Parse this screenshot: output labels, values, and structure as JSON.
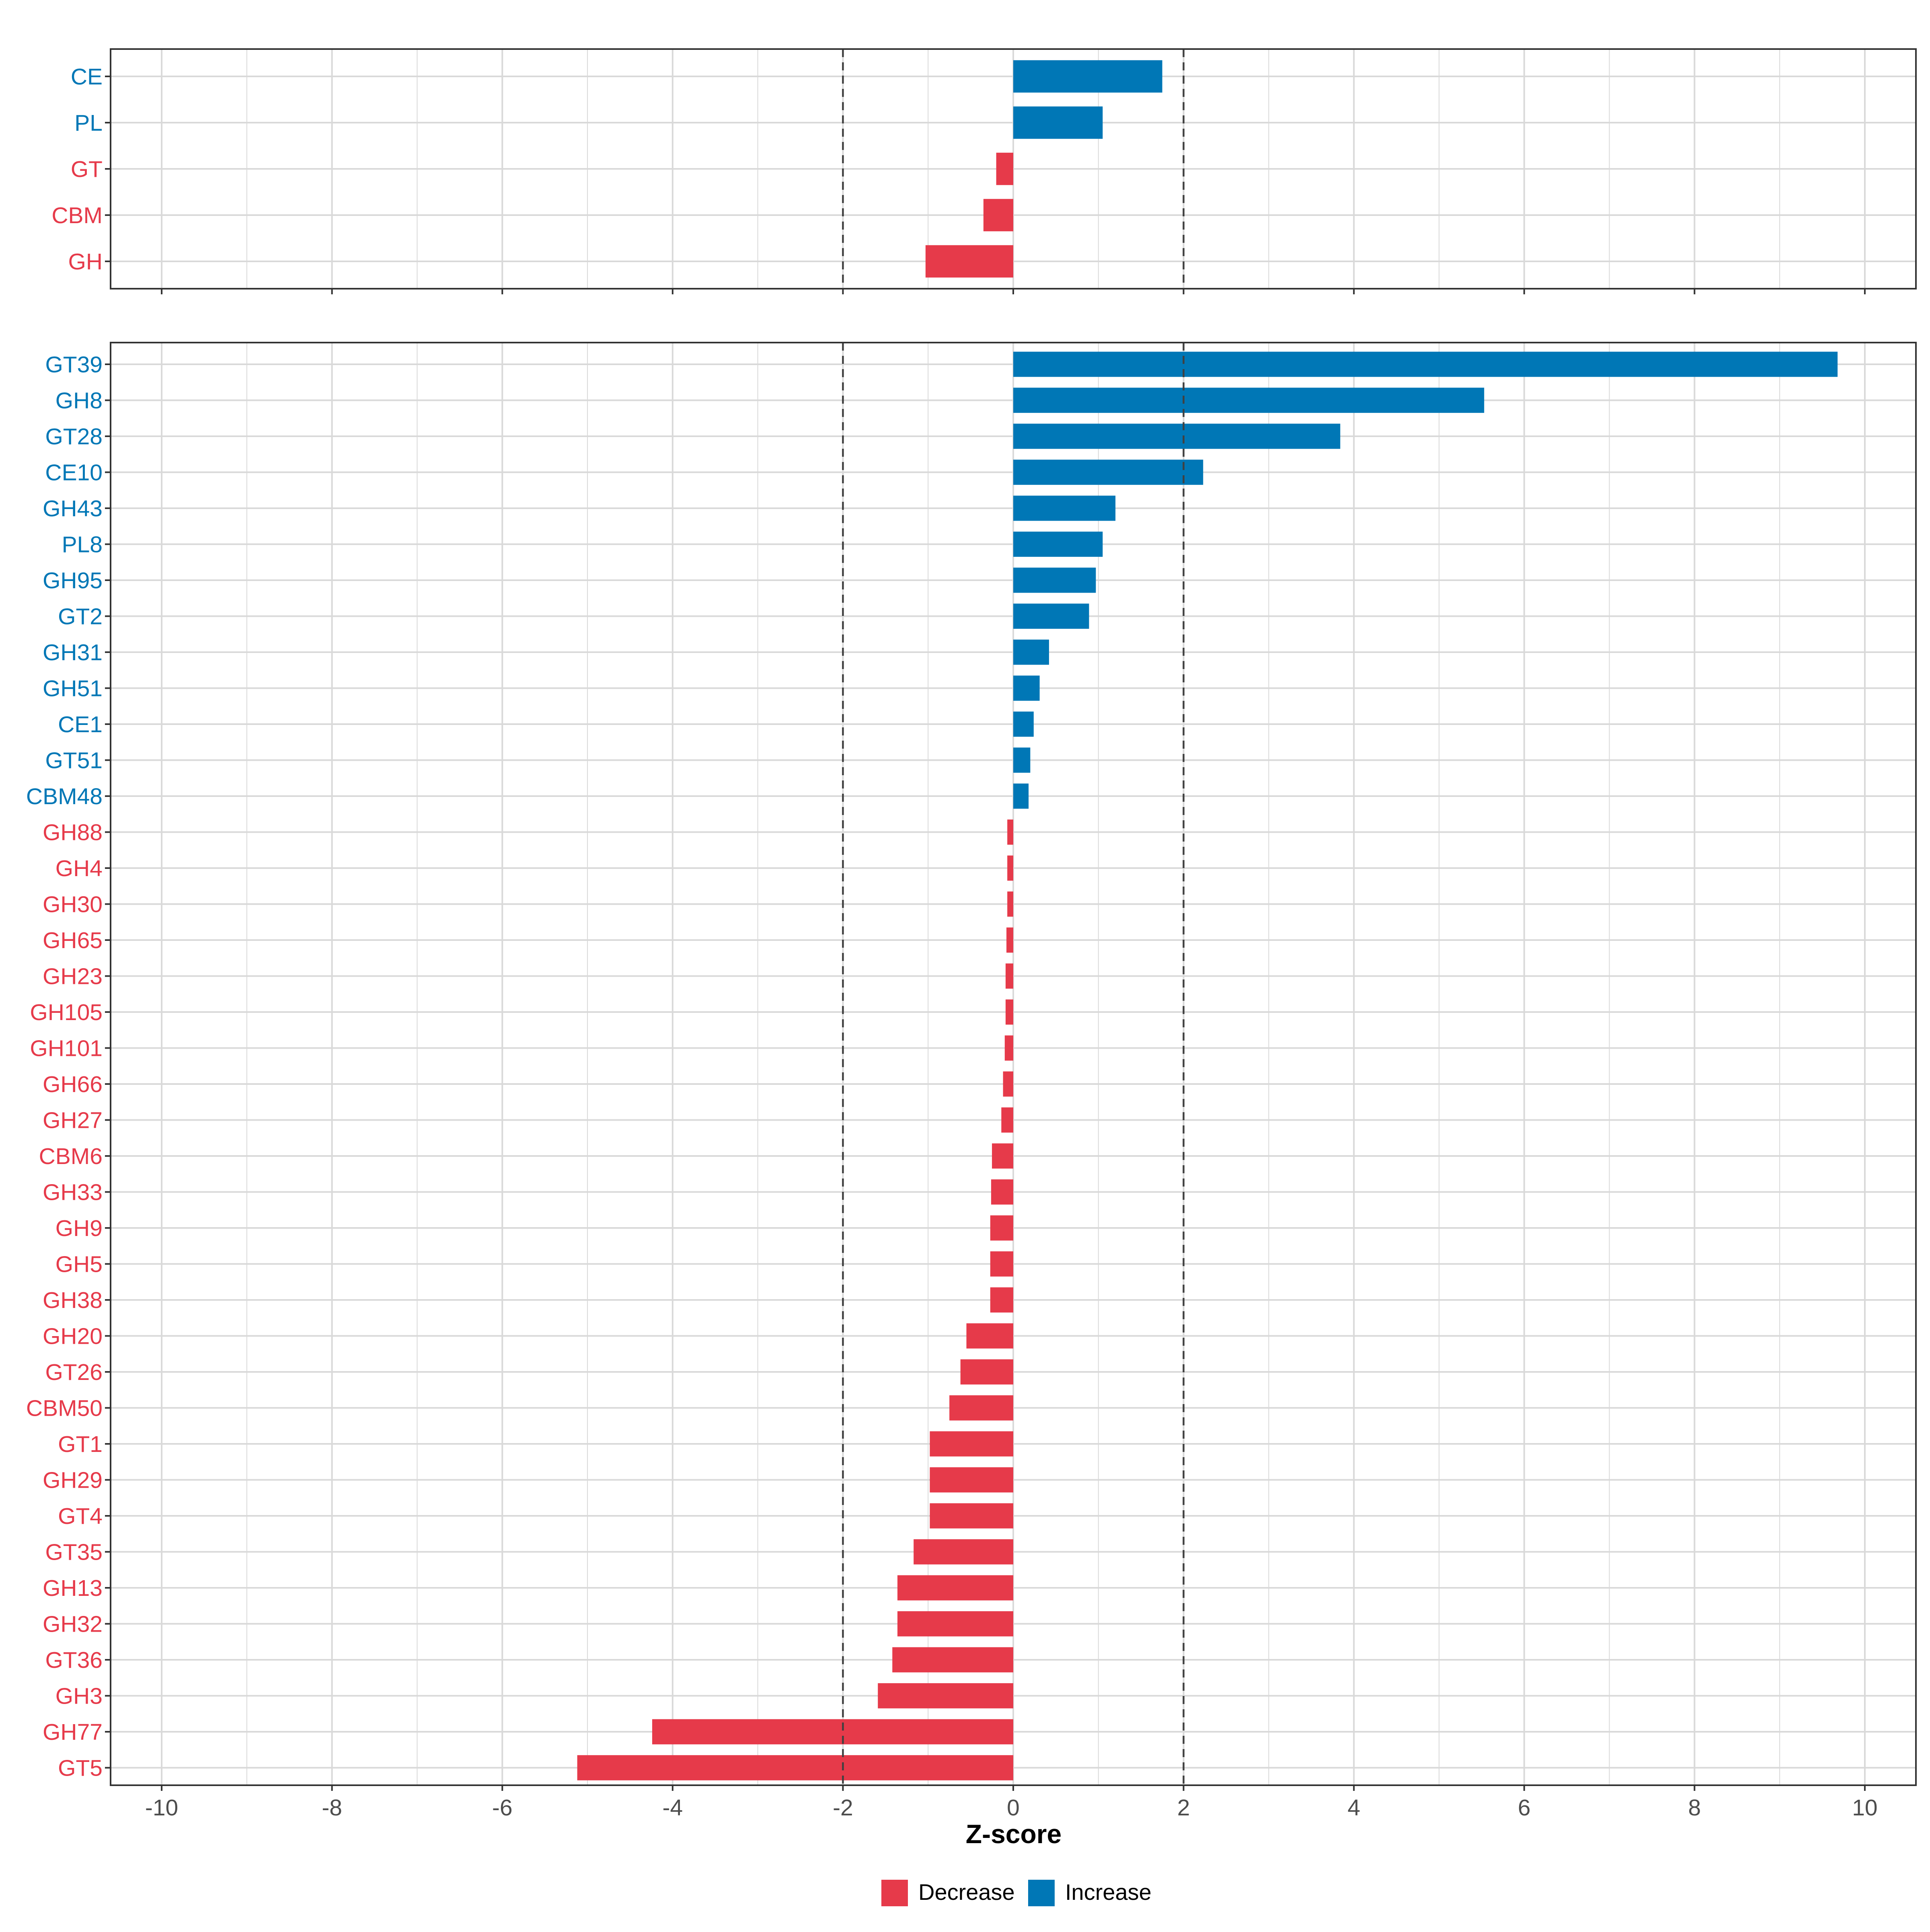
{
  "chart_data": [
    {
      "type": "bar",
      "orientation": "horizontal",
      "panel": "class-level",
      "categories": [
        "CE",
        "PL",
        "GT",
        "CBM",
        "GH"
      ],
      "values": [
        1.75,
        1.05,
        -0.2,
        -0.35,
        -1.03
      ],
      "threshold_lines": [
        -2,
        2
      ],
      "xlim": [
        -10.6,
        10.6
      ],
      "grid": true
    },
    {
      "type": "bar",
      "orientation": "horizontal",
      "panel": "family-level",
      "categories": [
        "GT39",
        "GH8",
        "GT28",
        "CE10",
        "GH43",
        "PL8",
        "GH95",
        "GT2",
        "GH31",
        "GH51",
        "CE1",
        "GT51",
        "CBM48",
        "GH88",
        "GH4",
        "GH30",
        "GH65",
        "GH23",
        "GH105",
        "GH101",
        "GH66",
        "GH27",
        "CBM6",
        "GH33",
        "GH9",
        "GH5",
        "GH38",
        "GH20",
        "GT26",
        "CBM50",
        "GT1",
        "GH29",
        "GT4",
        "GT35",
        "GH13",
        "GH32",
        "GT36",
        "GH3",
        "GH77",
        "GT5"
      ],
      "values": [
        9.68,
        5.53,
        3.84,
        2.23,
        1.2,
        1.05,
        0.97,
        0.89,
        0.42,
        0.31,
        0.24,
        0.2,
        0.18,
        -0.07,
        -0.07,
        -0.07,
        -0.08,
        -0.09,
        -0.09,
        -0.1,
        -0.12,
        -0.14,
        -0.25,
        -0.26,
        -0.27,
        -0.27,
        -0.27,
        -0.55,
        -0.62,
        -0.75,
        -0.98,
        -0.98,
        -0.98,
        -1.17,
        -1.36,
        -1.36,
        -1.42,
        -1.59,
        -4.24,
        -5.12
      ],
      "threshold_lines": [
        -2,
        2
      ],
      "xlim": [
        -10.6,
        10.6
      ],
      "xticks": [
        -10,
        -8,
        -6,
        -4,
        -2,
        0,
        2,
        4,
        6,
        8,
        10
      ],
      "xticklabels": [
        "-10",
        "-8",
        "-6",
        "-4",
        "-2",
        "0",
        "2",
        "4",
        "6",
        "8",
        "10"
      ],
      "xlabel": "Z-score",
      "grid": true
    }
  ],
  "legend": {
    "position": "bottom",
    "items": [
      {
        "label": "Decrease",
        "color": "#e63a4a"
      },
      {
        "label": "Increase",
        "color": "#0077b6"
      }
    ]
  },
  "colors": {
    "increase": "#0077b6",
    "decrease": "#e63a4a",
    "grid": "#d9d9d9",
    "threshold": "#404040",
    "axis_text": "#4d4d4d"
  }
}
